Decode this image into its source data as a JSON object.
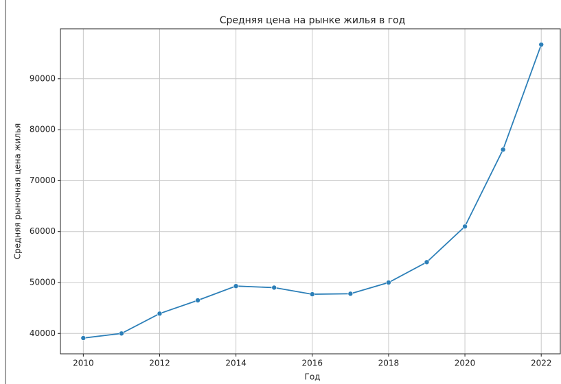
{
  "chart_data": {
    "type": "line",
    "title": "Средняя цена на рынке жилья в год",
    "x_label": "Год",
    "y_label": "Средняя рыночная цена жилья",
    "x": [
      2010,
      2011,
      2012,
      2013,
      2014,
      2015,
      2016,
      2017,
      2018,
      2019,
      2020,
      2021,
      2022
    ],
    "series": [
      {
        "name": "Средняя рыночная цена жилья",
        "color": "#2c7fb8",
        "values": [
          39100,
          40000,
          43900,
          46500,
          49300,
          49000,
          47700,
          47800,
          50000,
          54000,
          61000,
          76100,
          96700
        ]
      }
    ],
    "xlim": [
      2009.4,
      2022.5
    ],
    "ylim": [
      36000,
      99800
    ],
    "xticks": [
      2010,
      2012,
      2014,
      2016,
      2018,
      2020,
      2022
    ],
    "yticks": [
      40000,
      50000,
      60000,
      70000,
      80000,
      90000
    ],
    "grid": true
  }
}
